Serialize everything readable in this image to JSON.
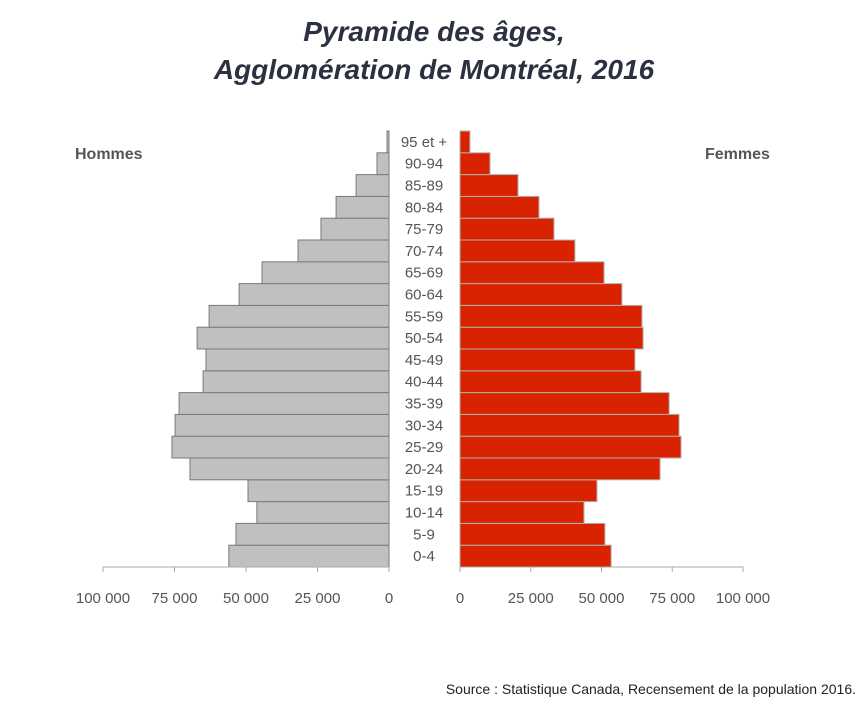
{
  "chart_data": {
    "type": "bar",
    "orientation": "horizontal-pyramid",
    "title_line1": "Pyramide des âges,",
    "title_line2": "Agglomération de Montréal, 2016",
    "left_label": "Hommes",
    "right_label": "Femmes",
    "categories": [
      "0-4",
      "5-9",
      "10-14",
      "15-19",
      "20-24",
      "25-29",
      "30-34",
      "35-39",
      "40-44",
      "45-49",
      "50-54",
      "55-59",
      "60-64",
      "65-69",
      "70-74",
      "75-79",
      "80-84",
      "85-89",
      "90-94",
      "95 et +"
    ],
    "series": [
      {
        "name": "Hommes",
        "color": "#c0c0c0",
        "values": [
          56000,
          53500,
          46200,
          49300,
          69600,
          75900,
          74800,
          73400,
          65000,
          64000,
          67100,
          62900,
          52400,
          44400,
          31800,
          23800,
          18500,
          11500,
          4200,
          700
        ]
      },
      {
        "name": "Femmes",
        "color": "#d92300",
        "values": [
          53400,
          51200,
          43800,
          48400,
          70700,
          78100,
          77400,
          73900,
          64000,
          61800,
          64700,
          64300,
          57200,
          50900,
          40600,
          33200,
          27900,
          20500,
          10600,
          3500
        ]
      }
    ],
    "xlim": [
      0,
      100000
    ],
    "left_ticks": [
      "100 000",
      "75 000",
      "50 000",
      "25 000",
      "0"
    ],
    "right_ticks": [
      "0",
      "25 000",
      "50 000",
      "75 000",
      "100 000"
    ],
    "tick_values": [
      100000,
      75000,
      50000,
      25000,
      0
    ],
    "grid": false,
    "source": "Source : Statistique Canada, Recensement de la population 2016."
  }
}
